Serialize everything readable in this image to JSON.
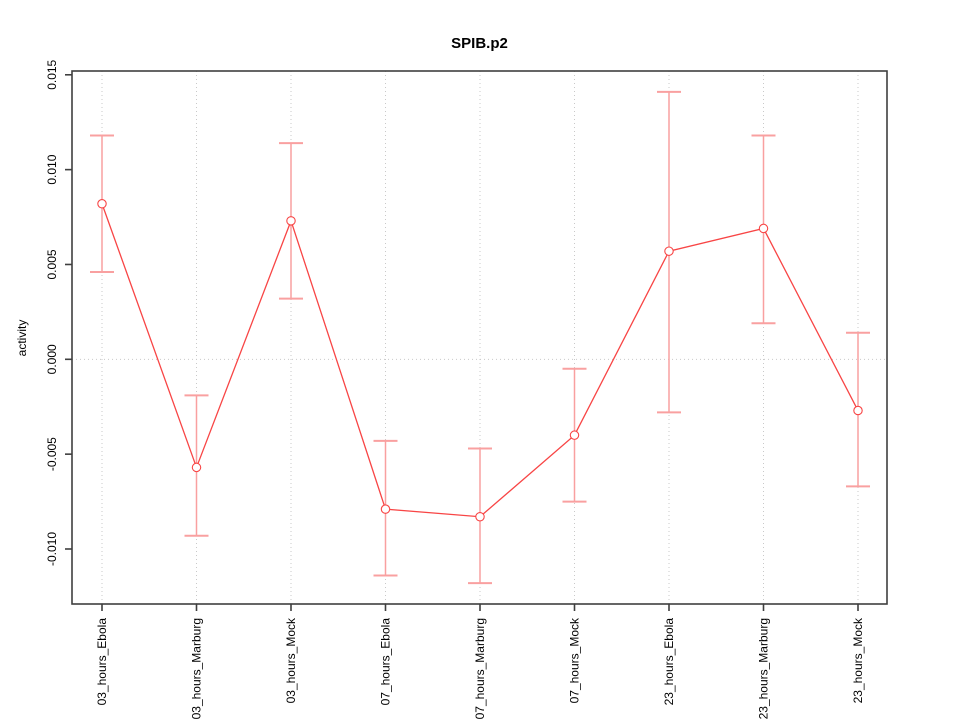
{
  "figure": {
    "background": "#ffffff"
  },
  "chart_data": {
    "type": "line",
    "title": "SPIB.p2",
    "ylabel": "activity",
    "xlabel": "",
    "categories": [
      "03_hours_Ebola",
      "03_hours_Marburg",
      "03_hours_Mock",
      "07_hours_Ebola",
      "07_hours_Marburg",
      "07_hours_Mock",
      "23_hours_Ebola",
      "23_hours_Marburg",
      "23_hours_Mock"
    ],
    "values": [
      0.0082,
      -0.0057,
      0.0073,
      -0.0079,
      -0.0083,
      -0.004,
      0.0057,
      0.0069,
      -0.0027
    ],
    "error_upper": [
      0.0118,
      -0.0019,
      0.0114,
      -0.0043,
      -0.0047,
      -0.0005,
      0.0141,
      0.0118,
      0.0014
    ],
    "error_lower": [
      0.0046,
      -0.0093,
      0.0032,
      -0.0114,
      -0.0118,
      -0.0075,
      -0.0028,
      0.0019,
      -0.0067
    ],
    "yticks": [
      -0.01,
      -0.005,
      0.0,
      0.005,
      0.01,
      0.015
    ],
    "ytick_labels": [
      "-0.010",
      "-0.005",
      "0.000",
      "0.005",
      "0.010",
      "0.015"
    ],
    "ylim": [
      -0.0129,
      0.0152
    ],
    "grid": {
      "vertical_at_categories": true,
      "horizontal_at_zero": true,
      "style": "dotted"
    },
    "legend": "none",
    "marker": "open-circle",
    "colors": {
      "line": "#f84545",
      "marker": "#f84545",
      "error_bar": "#f9a0a0",
      "grid": "#c9c9c9",
      "axis": "#3f3f3f",
      "text": "#000000"
    }
  }
}
